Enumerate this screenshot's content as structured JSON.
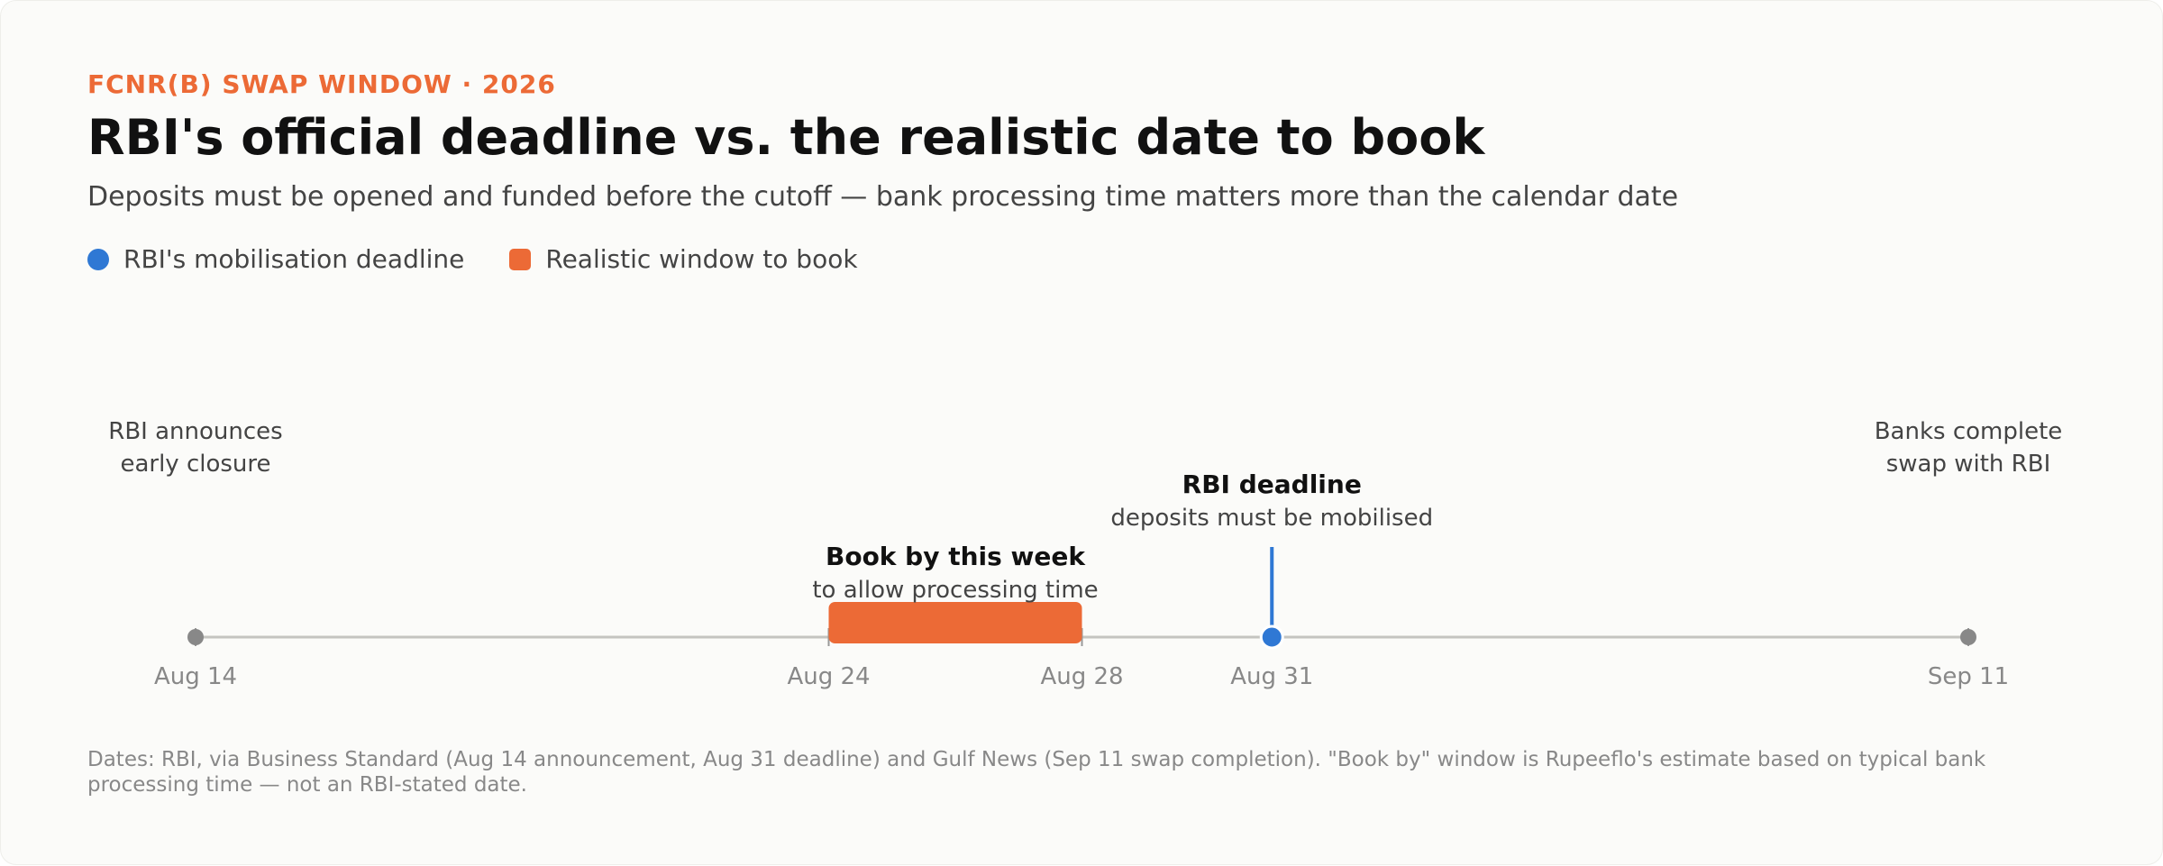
{
  "chart_data": {
    "type": "timeline",
    "eyebrow": "FCNR(B) SWAP WINDOW · 2026",
    "title": "RBI's official deadline vs. the realistic date to book",
    "subtitle": "Deposits must be opened and funded before the cutoff — bank processing time matters more than the calendar date",
    "xlim": [
      "Aug 14",
      "Sep 11"
    ],
    "xticks": [
      "Aug 14",
      "Aug 24",
      "Aug 28",
      "Aug 31",
      "Sep 11"
    ],
    "series": [
      {
        "name": "RBI's mobilisation deadline",
        "color": "#2f78d4",
        "x": [
          "Aug 31"
        ],
        "label": "RBI deadline",
        "sublabel": "deposits must be mobilised"
      },
      {
        "name": "Realistic window to book",
        "color": "#ec6a36",
        "x": [
          "Aug 24",
          "Aug 28"
        ],
        "label": "Book by this week",
        "sublabel": "to allow processing time"
      }
    ],
    "events": [
      {
        "x": "Aug 14",
        "label": [
          "RBI announces",
          "early closure"
        ]
      },
      {
        "x": "Sep 11",
        "label": [
          "Banks complete",
          "swap with RBI"
        ]
      }
    ],
    "note": "Dates: RBI, via Business Standard (Aug 14 announcement, Aug 31 deadline) and Gulf News (Sep 11 swap completion). \"Book by\" window is Rupeeflo's estimate based on typical bank processing time — not an RBI-stated date."
  }
}
